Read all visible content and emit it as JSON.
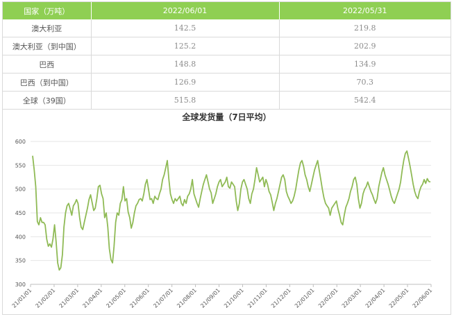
{
  "table": {
    "headers": [
      "国家（万吨）",
      "2022/06/01",
      "2022/05/31"
    ],
    "rows": [
      {
        "country": "澳大利亚",
        "jun01": "142.5",
        "may31": "219.8"
      },
      {
        "country": "澳大利亚（到中国）",
        "jun01": "125.2",
        "may31": "202.9"
      },
      {
        "country": "巴西",
        "jun01": "148.8",
        "may31": "134.9"
      },
      {
        "country": "巴西（到中国）",
        "jun01": "126.9",
        "may31": "70.3"
      },
      {
        "country": "全球（39国）",
        "jun01": "515.8",
        "may31": "542.4"
      }
    ]
  },
  "chart_data": {
    "type": "line",
    "title": "全球发货量（7日平均）",
    "xlabel": "",
    "ylabel": "",
    "ylim": [
      300,
      600
    ],
    "yticks": [
      300,
      350,
      400,
      450,
      500,
      550,
      600
    ],
    "xticks": [
      "21/01/01",
      "21/02/01",
      "21/03/01",
      "21/04/01",
      "21/05/01",
      "21/06/01",
      "21/07/01",
      "21/08/01",
      "21/09/01",
      "21/10/01",
      "21/11/01",
      "21/12/01",
      "22/01/01",
      "22/02/01",
      "22/03/01",
      "22/04/01",
      "22/05/01",
      "22/06/01"
    ],
    "grid": true,
    "color": "#8fba55",
    "series": [
      {
        "values": [
          570,
          540,
          505,
          432,
          425,
          440,
          430,
          430,
          425,
          395,
          380,
          385,
          378,
          395,
          425,
          390,
          345,
          330,
          335,
          362,
          420,
          450,
          465,
          470,
          458,
          445,
          465,
          470,
          478,
          470,
          440,
          420,
          415,
          430,
          445,
          460,
          478,
          488,
          472,
          455,
          460,
          480,
          505,
          508,
          490,
          480,
          440,
          450,
          420,
          375,
          352,
          345,
          380,
          430,
          450,
          445,
          470,
          478,
          505,
          475,
          480,
          452,
          440,
          418,
          430,
          450,
          465,
          470,
          478,
          480,
          475,
          490,
          510,
          520,
          500,
          478,
          480,
          470,
          485,
          480,
          478,
          490,
          500,
          520,
          530,
          545,
          560,
          520,
          490,
          478,
          470,
          480,
          475,
          480,
          485,
          470,
          465,
          478,
          470,
          485,
          490,
          500,
          520,
          490,
          480,
          470,
          462,
          480,
          495,
          510,
          520,
          530,
          515,
          500,
          492,
          470,
          480,
          490,
          505,
          515,
          520,
          505,
          510,
          515,
          525,
          505,
          502,
          515,
          510,
          505,
          475,
          455,
          470,
          500,
          515,
          520,
          510,
          500,
          480,
          470,
          490,
          500,
          520,
          545,
          530,
          515,
          520,
          525,
          505,
          520,
          510,
          495,
          488,
          472,
          455,
          470,
          480,
          495,
          510,
          525,
          530,
          520,
          495,
          485,
          478,
          470,
          475,
          485,
          500,
          520,
          540,
          555,
          560,
          548,
          530,
          520,
          505,
          495,
          510,
          525,
          540,
          550,
          560,
          540,
          520,
          500,
          482,
          470,
          465,
          460,
          445,
          460,
          465,
          470,
          475,
          458,
          445,
          430,
          425,
          445,
          462,
          470,
          480,
          495,
          505,
          520,
          525,
          510,
          480,
          460,
          470,
          490,
          500,
          505,
          515,
          505,
          495,
          488,
          478,
          470,
          480,
          505,
          520,
          535,
          545,
          530,
          520,
          510,
          498,
          485,
          475,
          470,
          480,
          490,
          500,
          515,
          540,
          560,
          575,
          580,
          565,
          548,
          530,
          510,
          495,
          485,
          480,
          495,
          505,
          510,
          520,
          512,
          522,
          516,
          515
        ]
      }
    ]
  }
}
